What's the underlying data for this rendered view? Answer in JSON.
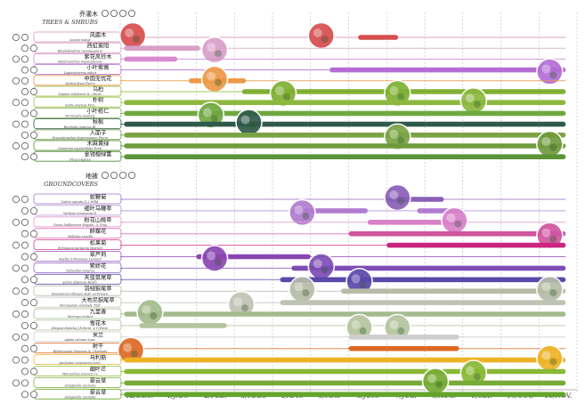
{
  "months": [
    "12/DEC.",
    "1/JAN.",
    "2/FEB.",
    "3/MAR.",
    "4/APR.",
    "5/MAY",
    "6/JUN.",
    "7/JUL.",
    "8/AUG.",
    "9/SEP.",
    "10/OCT.",
    "11/NOV."
  ],
  "sections": [
    {
      "title": "乔灌木",
      "subtitle": "TREES & SHRUBS",
      "species": [
        {
          "cn": "风鹿木",
          "lat": "Acacia mangi",
          "color": "#d98fc0",
          "bar": [
            0.0,
            11.7
          ],
          "hl": [
            [
              6.25,
              7.3
            ]
          ],
          "hlcolor": "#d64e4e",
          "photo": [
            0.05,
            5.0
          ]
        },
        {
          "cn": "西虹紫阳",
          "lat": "Rhododendron racemosum F.",
          "color": "#d9a7c6",
          "bar": [
            0.0,
            11.7
          ],
          "hl": [
            [
              0.1,
              2.1
            ]
          ],
          "hlcolor": "#d99fc8",
          "photo": [
            2.2
          ]
        },
        {
          "cn": "紫花风铃木",
          "lat": "Handroanthus impetiginosus",
          "color": "#c88ad2",
          "bar": [
            0.0,
            11.7
          ],
          "hl": [
            [
              0.1,
              1.5
            ]
          ],
          "hlcolor": "#d78ad0",
          "photo": []
        },
        {
          "cn": "小叶紫薇",
          "lat": "Lagerstroemia indica",
          "color": "#b46be0",
          "bar": [
            0.0,
            11.7
          ],
          "hl": [
            [
              5.5,
              11.7
            ]
          ],
          "hlcolor": "#b56dd6",
          "photo": [
            11.0
          ]
        },
        {
          "cn": "中国无忧花",
          "lat": "Saraca dives Pierre",
          "color": "#e79a4a",
          "bar": [
            0.0,
            11.7
          ],
          "hl": [
            [
              1.8,
              3.3
            ]
          ],
          "hlcolor": "#ed9a47",
          "photo": [
            2.2
          ]
        },
        {
          "cn": "乌桕",
          "lat": "Sapium sebiferum (L.) Roxb.",
          "color": "#8fbf3c",
          "bar": [
            0.0,
            11.7
          ],
          "hl": [
            [
              3.2,
              11.7
            ]
          ],
          "hlcolor": "#7fb033",
          "photo": [
            4.0,
            7.0
          ]
        },
        {
          "cn": "朴树",
          "lat": "Celtis sinensis Pers.",
          "color": "#a4c84c",
          "bar": [
            0.0,
            11.7
          ],
          "hl": [
            [
              0.1,
              11.7
            ]
          ],
          "hlcolor": "#8db83f",
          "photo": [
            9.0
          ]
        },
        {
          "cn": "小叶榄仁",
          "lat": "Terminalia mantaly",
          "color": "#7ab04a",
          "bar": [
            0.0,
            11.7
          ],
          "hl": [
            [
              0.1,
              11.7
            ]
          ],
          "hlcolor": "#6fa83f",
          "photo": [
            2.1
          ]
        },
        {
          "cn": "秋枫",
          "lat": "Bischofia javanica Bl.",
          "color": "#2f5f4f",
          "bar": [
            0.0,
            11.7
          ],
          "hl": [
            [
              0.1,
              11.7
            ]
          ],
          "hlcolor": "#2f5a4a",
          "photo": [
            3.1
          ]
        },
        {
          "cn": "人面子",
          "lat": "Dracontomelon duperreanum Pierre",
          "color": "#6d9a3c",
          "bar": [
            0.0,
            11.7
          ],
          "hl": [
            [
              0.1,
              11.7
            ]
          ],
          "hlcolor": "#7aa443",
          "photo": [
            7.0
          ]
        },
        {
          "cn": "木麻黄绿",
          "lat": "Casuarina equisetifolia Forst.",
          "color": "#5e8d3a",
          "bar": [
            0.0,
            11.7
          ],
          "hl": [
            [
              0.1,
              11.7
            ]
          ],
          "hlcolor": "#6f9b3d",
          "photo": [
            11.0
          ]
        },
        {
          "cn": "金钱榕绿篱",
          "lat": "Ficus elastica",
          "color": "#4d8a32",
          "bar": [
            0.0,
            11.7
          ],
          "hl": [
            [
              0.1,
              11.7
            ]
          ],
          "hlcolor": "#5a9436",
          "photo": []
        }
      ]
    },
    {
      "title": "地被",
      "subtitle": "GROUNDCOVERS",
      "species": [
        {
          "cn": "蛇鞭菊",
          "lat": "Liatris spicata (L.) Willd.",
          "color": "#9a74c9",
          "bar": [
            0.0,
            11.7
          ],
          "hl": [
            [
              7.0,
              8.5
            ]
          ],
          "hlcolor": "#8a5fb8",
          "photo": [
            7.0
          ]
        },
        {
          "cn": "细叶马鞭草",
          "lat": "Verbena tenuisecta B.",
          "color": "#b891d8",
          "bar": [
            0.0,
            11.7
          ],
          "hl": [
            [
              4.5,
              6.5
            ],
            [
              7.8,
              9.0
            ]
          ],
          "hlcolor": "#b07bd0",
          "photo": [
            4.5
          ]
        },
        {
          "cn": "粉花山桃草",
          "lat": "Gaura lindheimeri Engelm. & Gray",
          "color": "#e49ad0",
          "bar": [
            0.0,
            11.7
          ],
          "hl": [
            [
              6.5,
              9.0
            ]
          ],
          "hlcolor": "#d982c8",
          "photo": [
            8.5
          ]
        },
        {
          "cn": "醉蝶花",
          "lat": "Hellobia eruolla",
          "color": "#e076b8",
          "bar": [
            0.0,
            11.7
          ],
          "hl": [
            [
              6.0,
              11.7
            ]
          ],
          "hlcolor": "#d0559f",
          "photo": [
            11.0
          ]
        },
        {
          "cn": "松果菊",
          "lat": "Echinacea purpurea Moench",
          "color": "#d23a8f",
          "bar": [
            0.0,
            11.7
          ],
          "hl": [
            [
              7.0,
              11.7
            ]
          ],
          "hlcolor": "#c9257f",
          "photo": []
        },
        {
          "cn": "翠芦莉",
          "lat": "Ruellia brittoniana Leonard",
          "color": "#9b58c0",
          "bar": [
            0.0,
            11.7
          ],
          "hl": [
            [
              2.0,
              5.0
            ]
          ],
          "hlcolor": "#8a45b2",
          "photo": [
            2.2
          ]
        },
        {
          "cn": "紫娇花",
          "lat": "Tulbaghia violacea",
          "color": "#8c5fc2",
          "bar": [
            0.0,
            11.7
          ],
          "hl": [
            [
              4.5,
              11.7
            ]
          ],
          "hlcolor": "#7d4db6",
          "photo": [
            5.0
          ]
        },
        {
          "cn": "天蓝鼠尾草",
          "lat": "Salvia uliginosa Benth.",
          "color": "#6a58b8",
          "bar": [
            0.0,
            11.7
          ],
          "hl": [
            [
              4.2,
              11.7
            ]
          ],
          "hlcolor": "#5b48aa",
          "photo": [
            6.0
          ]
        },
        {
          "cn": "羽绒狼尾草",
          "lat": "Pennisetum villosum R.Br. ex Fresen.",
          "color": "#b9bfae",
          "bar": [
            0.0,
            11.7
          ],
          "hl": [
            [
              5.8,
              11.7
            ]
          ],
          "hlcolor": "#b6bca8",
          "photo": [
            4.5,
            11.0
          ]
        },
        {
          "cn": "大布尼狼尾草",
          "lat": "Pennisetum orientale 'Tall'",
          "color": "#c2c6b8",
          "bar": [
            0.0,
            11.7
          ],
          "hl": [
            [
              4.2,
              11.7
            ]
          ],
          "hlcolor": "#bfc3b4",
          "photo": [
            2.9
          ]
        },
        {
          "cn": "九里香",
          "lat": "Murraya exotica",
          "color": "#a8bf94",
          "bar": [
            0.0,
            11.7
          ],
          "hl": [
            [
              0.1,
              11.7
            ]
          ],
          "hlcolor": "#a3bb8d",
          "photo": [
            0.5
          ]
        },
        {
          "cn": "雪花木",
          "lat": "Breynia disticha J.R.Forst. & G.Forst.",
          "color": "#b6c6a0",
          "bar": [
            0.0,
            11.7
          ],
          "hl": [
            [
              0.5,
              2.8
            ]
          ],
          "hlcolor": "#b4c49e",
          "photo": [
            6.0,
            7.0
          ]
        },
        {
          "cn": "米兰",
          "lat": "Aglaia odorata Lour.",
          "color": "#d0d0d0",
          "bar": [
            0.0,
            11.7
          ],
          "hl": [
            [
              6.0,
              8.9
            ]
          ],
          "hlcolor": "#cfcfcf",
          "photo": []
        },
        {
          "cn": "射干",
          "lat": "Belamcanda chinensis (L.) Redouté",
          "color": "#e0762f",
          "bar": [
            0.0,
            11.7
          ],
          "hl": [
            [
              6.0,
              8.9
            ]
          ],
          "hlcolor": "#dc6a25",
          "photo": [
            0.0
          ]
        },
        {
          "cn": "马利筋",
          "lat": "Asclepias curassavica Linn.",
          "color": "#f0b42e",
          "bar": [
            0.0,
            11.7
          ],
          "hl": [
            [
              0.1,
              11.7
            ]
          ],
          "hlcolor": "#eeb225",
          "photo": [
            11.0
          ]
        },
        {
          "cn": "细叶芒",
          "lat": "Miscanthus sinensis cv.",
          "color": "#8fbf3c",
          "bar": [
            0.0,
            11.7
          ],
          "hl": [
            [
              0.1,
              11.7
            ]
          ],
          "hlcolor": "#89b835",
          "photo": [
            9.0
          ]
        },
        {
          "cn": "翠云草",
          "lat": "Selaginella uncinata",
          "color": "#7db23c",
          "bar": [
            0.0,
            11.7
          ],
          "hl": [
            [
              0.1,
              11.7
            ]
          ],
          "hlcolor": "#77ab35",
          "photo": [
            8.0
          ]
        },
        {
          "cn": "翠云草",
          "lat": "Selaginella uncinata",
          "color": "#6aa82f",
          "bar": [
            0.0,
            11.7
          ],
          "hl": [
            [
              0.1,
              11.7
            ]
          ],
          "hlcolor": "#66a32c",
          "photo": []
        }
      ]
    }
  ]
}
